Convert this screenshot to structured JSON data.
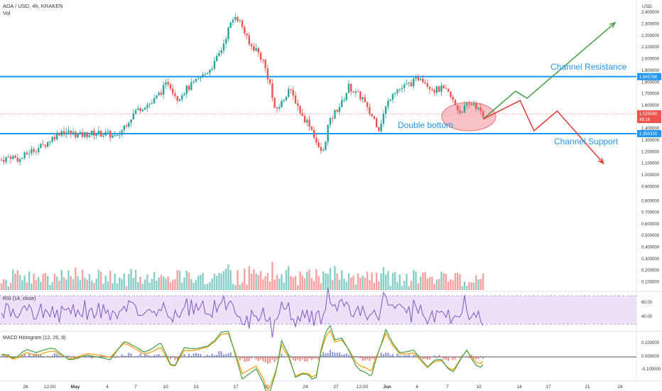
{
  "header": {
    "symbol_line": "ADA / USD, 4h, KRAKEN",
    "volume_label": "Vol"
  },
  "price_axis": {
    "currency": "USD",
    "ticks": [
      "2.400000",
      "2.300000",
      "2.200000",
      "2.100000",
      "2.000000",
      "1.900000",
      "1.800000",
      "1.700000",
      "1.600000",
      "1.500000",
      "1.400000",
      "1.300000",
      "1.200000",
      "1.100000",
      "1.000000",
      "0.900000",
      "0.800000",
      "0.700000",
      "0.600000",
      "0.500000",
      "0.400000",
      "0.300000",
      "0.200000",
      "0.100000"
    ],
    "badges": {
      "resistance": "1.845786",
      "current": "1.525590",
      "countdown": "49:16",
      "support": "1.355335"
    }
  },
  "time_axis": {
    "labels": [
      "26",
      "12:00",
      "May",
      "4",
      "7",
      "10",
      "13",
      "17",
      "20",
      "24",
      "27",
      "12:00",
      "Jun",
      "4",
      "7",
      "10",
      "14",
      "17",
      "21",
      "24"
    ]
  },
  "annotations": {
    "channel_resistance": "Channel Resistance",
    "channel_support": "Channel Support",
    "double_bottom": "Double bottom"
  },
  "rsi": {
    "label": "RSI (14, close)",
    "ticks": [
      "60.00",
      "40.00"
    ]
  },
  "macd": {
    "label": "MACD Histogram (12, 26, 9)",
    "ticks": [
      "0.100000",
      "0.000000",
      "-0.100000"
    ]
  },
  "colors": {
    "up": "#26a69a",
    "down": "#ef5350",
    "line_blue": "#2196f3",
    "projection_green": "#43a047",
    "projection_red": "#e53935",
    "rsi_line": "#7e57c2",
    "rsi_band": "#ede1fa",
    "macd_line": "#43a047",
    "signal_line": "#ff9800"
  },
  "chart_data": {
    "type": "candlestick",
    "price_levels": {
      "channel_resistance": 1.845786,
      "channel_support": 1.355335,
      "last_price": 1.52559
    },
    "price_path": [
      [
        0,
        1.13
      ],
      [
        4,
        1.16
      ],
      [
        8,
        1.13
      ],
      [
        12,
        1.2
      ],
      [
        18,
        1.25
      ],
      [
        22,
        1.32
      ],
      [
        26,
        1.38
      ],
      [
        30,
        1.36
      ],
      [
        34,
        1.34
      ],
      [
        40,
        1.36
      ],
      [
        46,
        1.35
      ],
      [
        50,
        1.32
      ],
      [
        53,
        1.42
      ],
      [
        58,
        1.55
      ],
      [
        62,
        1.6
      ],
      [
        65,
        1.62
      ],
      [
        69,
        1.72
      ],
      [
        72,
        1.8
      ],
      [
        76,
        1.66
      ],
      [
        80,
        1.74
      ],
      [
        84,
        1.8
      ],
      [
        88,
        1.87
      ],
      [
        92,
        1.96
      ],
      [
        95,
        2.08
      ],
      [
        98,
        2.25
      ],
      [
        101,
        2.38
      ],
      [
        104,
        2.28
      ],
      [
        107,
        2.12
      ],
      [
        110,
        2.08
      ],
      [
        113,
        1.98
      ],
      [
        116,
        1.78
      ],
      [
        118,
        1.55
      ],
      [
        121,
        1.62
      ],
      [
        124,
        1.74
      ],
      [
        127,
        1.64
      ],
      [
        130,
        1.5
      ],
      [
        133,
        1.44
      ],
      [
        135,
        1.34
      ],
      [
        137,
        1.22
      ],
      [
        139,
        1.2
      ],
      [
        141,
        1.42
      ],
      [
        144,
        1.54
      ],
      [
        147,
        1.62
      ],
      [
        150,
        1.76
      ],
      [
        153,
        1.7
      ],
      [
        156,
        1.66
      ],
      [
        158,
        1.56
      ],
      [
        161,
        1.48
      ],
      [
        163,
        1.4
      ],
      [
        166,
        1.58
      ],
      [
        169,
        1.72
      ],
      [
        172,
        1.74
      ],
      [
        175,
        1.77
      ],
      [
        178,
        1.8
      ],
      [
        181,
        1.85
      ],
      [
        184,
        1.78
      ],
      [
        187,
        1.73
      ],
      [
        190,
        1.74
      ],
      [
        193,
        1.7
      ],
      [
        196,
        1.6
      ],
      [
        198,
        1.54
      ],
      [
        200,
        1.58
      ],
      [
        202,
        1.6
      ],
      [
        204,
        1.62
      ],
      [
        206,
        1.56
      ],
      [
        208,
        1.5
      ]
    ],
    "projections": {
      "bullish": [
        [
          208,
          1.48
        ],
        [
          222,
          1.72
        ],
        [
          227,
          1.66
        ],
        [
          265,
          2.31
        ]
      ],
      "bearish": [
        [
          208,
          1.48
        ],
        [
          224,
          1.64
        ],
        [
          230,
          1.38
        ],
        [
          240,
          1.55
        ],
        [
          260,
          1.1
        ]
      ]
    },
    "rsi_levels": [
      40,
      60
    ],
    "macd_zero": 0.0
  }
}
